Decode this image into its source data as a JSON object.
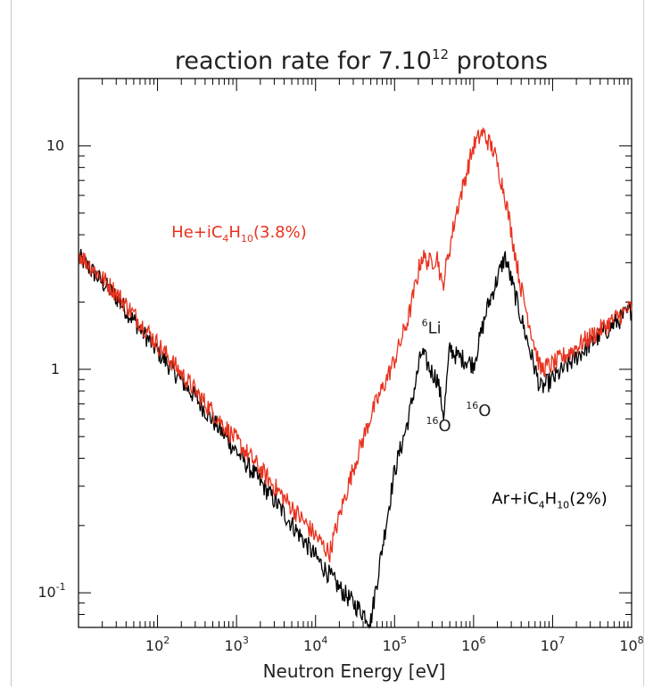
{
  "chart_data": {
    "type": "line",
    "title": "reaction rate for 7.10",
    "title_superscript": "12",
    "title_suffix": " protons",
    "xlabel": "Neutron Energy [eV]",
    "ylabel": "",
    "x_scale": "log",
    "y_scale": "log",
    "xlim": [
      10,
      100000000
    ],
    "ylim": [
      0.07,
      20
    ],
    "grid": false,
    "x_ticks": [
      {
        "value": 100,
        "base": "10",
        "exp": "2"
      },
      {
        "value": 1000,
        "base": "10",
        "exp": "3"
      },
      {
        "value": 10000,
        "base": "10",
        "exp": "4"
      },
      {
        "value": 100000,
        "base": "10",
        "exp": "5"
      },
      {
        "value": 1000000,
        "base": "10",
        "exp": "6"
      },
      {
        "value": 10000000,
        "base": "10",
        "exp": "7"
      },
      {
        "value": 100000000,
        "base": "10",
        "exp": "8"
      }
    ],
    "y_ticks": [
      {
        "value": 0.1,
        "base": "10",
        "exp": "-1"
      },
      {
        "value": 1,
        "base": "1",
        "exp": ""
      },
      {
        "value": 10,
        "base": "10",
        "exp": ""
      }
    ],
    "series": [
      {
        "name": "He+iC4H10(3.8%)",
        "color": "#e8321e",
        "x": [
          10,
          30,
          100,
          300,
          1000,
          3000,
          10000,
          15000,
          20000,
          30000,
          50000,
          100000,
          150000,
          220000,
          280000,
          350000,
          400000,
          600000,
          1000000,
          1300000,
          1800000,
          2500000,
          4000000,
          7000000,
          10000000,
          30000000,
          100000000
        ],
        "y": [
          3.3,
          2.2,
          1.3,
          0.8,
          0.48,
          0.3,
          0.18,
          0.15,
          0.22,
          0.36,
          0.62,
          1.1,
          1.7,
          3.2,
          3.0,
          3.2,
          2.3,
          5.0,
          10.0,
          11.5,
          9.5,
          6.0,
          2.3,
          1.0,
          1.05,
          1.4,
          1.9
        ]
      },
      {
        "name": "Ar+iC4H10(2%)",
        "color": "#000000",
        "x": [
          10,
          30,
          100,
          300,
          1000,
          3000,
          10000,
          20000,
          30000,
          50000,
          70000,
          100000,
          150000,
          220000,
          280000,
          350000,
          420000,
          500000,
          600000,
          800000,
          1000000,
          1500000,
          2500000,
          4000000,
          7000000,
          10000000,
          30000000,
          100000000
        ],
        "y": [
          3.2,
          2.1,
          1.2,
          0.75,
          0.43,
          0.26,
          0.145,
          0.105,
          0.09,
          0.075,
          0.16,
          0.35,
          0.6,
          1.2,
          1.0,
          0.9,
          0.62,
          1.25,
          1.15,
          1.1,
          1.05,
          1.9,
          3.2,
          1.7,
          0.82,
          0.9,
          1.3,
          1.85
        ]
      }
    ],
    "annotations": [
      {
        "text": "He+iC",
        "sub": "4",
        "text2": "H",
        "sub2": "10",
        "text3": "(3.8%)",
        "color": "#e8321e",
        "x": 150,
        "y": 3.9
      },
      {
        "text": "Ar+iC",
        "sub": "4",
        "text2": "H",
        "sub2": "10",
        "text3": "(2%)",
        "color": "#000000",
        "x": 1700000,
        "y": 0.25
      },
      {
        "sup": "6",
        "text": "Li",
        "x": 220000,
        "y": 1.45
      },
      {
        "sup": "16",
        "text": "O",
        "x": 250000,
        "y": 0.53
      },
      {
        "sup": "16",
        "text": "O",
        "x": 800000,
        "y": 0.62
      }
    ]
  }
}
